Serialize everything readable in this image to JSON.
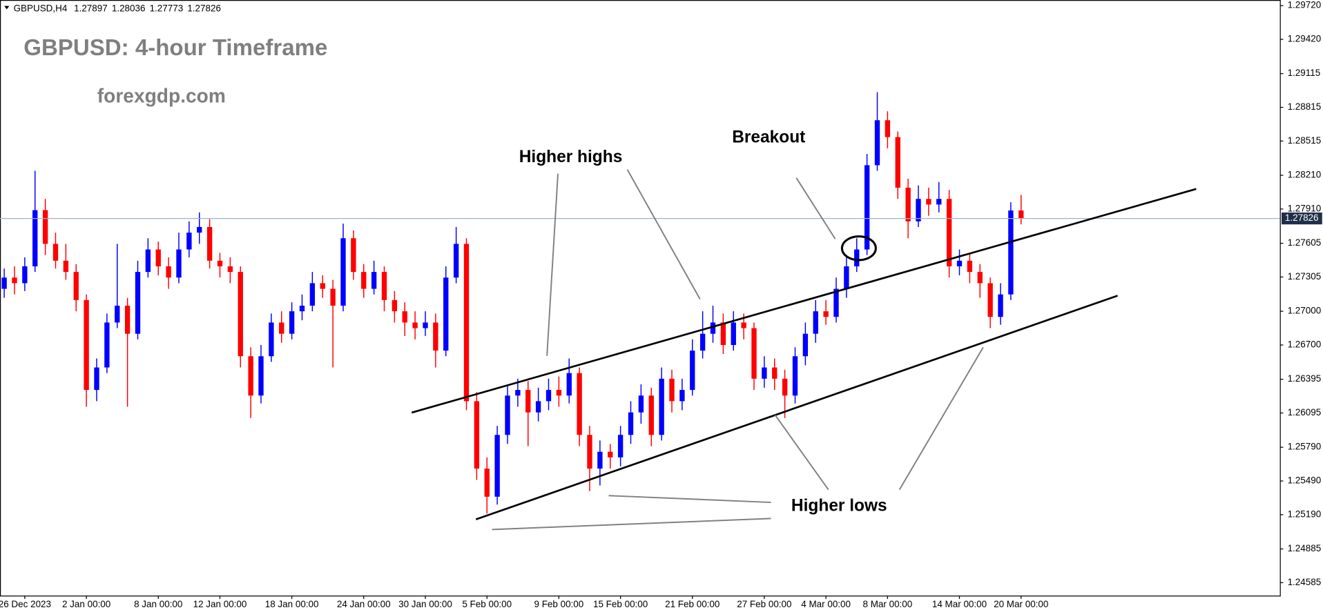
{
  "header": {
    "symbol": "GBPUSD,H4"
  },
  "chart_data": {
    "type": "candlestick",
    "title": "GBPUSD: 4-hour Timeframe",
    "subtitle": "forexgdp.com",
    "categories": [
      null,
      null,
      "26 Dec 2023",
      null,
      null,
      null,
      null,
      null,
      "2 Jan 00:00",
      null,
      null,
      null,
      null,
      null,
      null,
      "8 Jan 00:00",
      null,
      null,
      null,
      null,
      null,
      "12 Jan 00:00",
      null,
      null,
      null,
      null,
      null,
      null,
      "18 Jan 00:00",
      null,
      null,
      null,
      null,
      null,
      null,
      "24 Jan 00:00",
      null,
      null,
      null,
      null,
      null,
      "30 Jan 00:00",
      null,
      null,
      null,
      null,
      null,
      "5 Feb 00:00",
      null,
      null,
      null,
      null,
      null,
      null,
      "9 Feb 00:00",
      null,
      null,
      null,
      null,
      null,
      "15 Feb 00:00",
      null,
      null,
      null,
      null,
      null,
      null,
      "21 Feb 00:00",
      null,
      null,
      null,
      null,
      null,
      null,
      "27 Feb 00:00",
      null,
      null,
      null,
      null,
      null,
      "4 Mar 00:00",
      null,
      null,
      null,
      null,
      null,
      "8 Mar 00:00",
      null,
      null,
      null,
      null,
      null,
      null,
      "14 Mar 00:00",
      null,
      null,
      null,
      null,
      null,
      "20 Mar 00:00"
    ],
    "open": [
      1.272,
      1.273,
      1.2725,
      1.274,
      1.279,
      1.276,
      1.2745,
      1.2735,
      1.271,
      1.263,
      1.265,
      1.269,
      1.2705,
      1.268,
      1.2735,
      1.2755,
      1.274,
      1.273,
      1.2755,
      1.277,
      1.2775,
      1.2745,
      1.274,
      1.2735,
      1.266,
      1.2625,
      1.266,
      1.269,
      1.268,
      1.27,
      1.2705,
      1.2725,
      1.272,
      1.2705,
      1.2765,
      1.2735,
      1.272,
      1.2735,
      1.271,
      1.27,
      1.269,
      1.2685,
      1.269,
      1.2665,
      1.273,
      1.276,
      1.262,
      1.256,
      1.2535,
      1.259,
      1.2625,
      1.263,
      1.261,
      1.262,
      1.263,
      1.2625,
      1.2645,
      1.259,
      1.256,
      1.2575,
      1.257,
      1.259,
      1.261,
      1.2625,
      1.259,
      1.264,
      1.262,
      1.263,
      1.2665,
      1.268,
      1.269,
      1.267,
      1.269,
      1.2685,
      1.264,
      1.265,
      1.264,
      1.2625,
      1.266,
      1.268,
      1.27,
      1.2695,
      1.272,
      1.274,
      1.2755,
      1.283,
      1.287,
      1.2855,
      1.281,
      1.278,
      1.28,
      1.2795,
      1.28,
      1.274,
      1.2745,
      1.2735,
      1.2725,
      1.2695,
      1.2715,
      1.27897
    ],
    "high": [
      1.2738,
      1.274,
      1.2748,
      1.2825,
      1.28,
      1.277,
      1.276,
      1.2742,
      1.2715,
      1.2658,
      1.2698,
      1.276,
      1.2712,
      1.2745,
      1.2765,
      1.2762,
      1.2748,
      1.277,
      1.278,
      1.2788,
      1.2782,
      1.2752,
      1.2748,
      1.274,
      1.2668,
      1.267,
      1.2698,
      1.27,
      1.2708,
      1.2715,
      1.2735,
      1.2732,
      1.2728,
      1.2778,
      1.2772,
      1.2742,
      1.2745,
      1.274,
      1.2718,
      1.2708,
      1.27,
      1.27,
      1.2698,
      1.274,
      1.2775,
      1.2765,
      1.2628,
      1.257,
      1.2598,
      1.2635,
      1.264,
      1.2638,
      1.2632,
      1.264,
      1.2642,
      1.2658,
      1.265,
      1.2598,
      1.2585,
      1.2582,
      1.2598,
      1.262,
      1.2635,
      1.2632,
      1.265,
      1.2648,
      1.264,
      1.2675,
      1.27,
      1.2705,
      1.2698,
      1.27,
      1.2698,
      1.269,
      1.266,
      1.2658,
      1.2648,
      1.2668,
      1.269,
      1.271,
      1.271,
      1.273,
      1.275,
      1.2765,
      1.284,
      1.2895,
      1.2878,
      1.286,
      1.2818,
      1.2812,
      1.281,
      1.2815,
      1.2808,
      1.2755,
      1.2752,
      1.2742,
      1.273,
      1.2725,
      1.2797,
      1.28036
    ],
    "low": [
      1.2712,
      1.2715,
      1.2718,
      1.2735,
      1.275,
      1.2738,
      1.2728,
      1.27,
      1.2615,
      1.262,
      1.2645,
      1.2685,
      1.2615,
      1.2675,
      1.273,
      1.2732,
      1.272,
      1.2725,
      1.2748,
      1.276,
      1.2738,
      1.273,
      1.2725,
      1.265,
      1.2605,
      1.2618,
      1.2655,
      1.2672,
      1.2675,
      1.2692,
      1.27,
      1.2712,
      1.265,
      1.27,
      1.2728,
      1.2712,
      1.2715,
      1.27,
      1.269,
      1.2678,
      1.2675,
      1.2678,
      1.265,
      1.266,
      1.2725,
      1.2612,
      1.255,
      1.252,
      1.2528,
      1.2582,
      1.2615,
      1.258,
      1.2602,
      1.2612,
      1.2615,
      1.2618,
      1.258,
      1.254,
      1.2545,
      1.256,
      1.2562,
      1.2582,
      1.26,
      1.258,
      1.2585,
      1.261,
      1.2612,
      1.2625,
      1.2658,
      1.2672,
      1.2662,
      1.2665,
      1.2675,
      1.263,
      1.2632,
      1.263,
      1.2605,
      1.2618,
      1.2652,
      1.2672,
      1.2688,
      1.269,
      1.2712,
      1.2735,
      1.275,
      1.2825,
      1.2845,
      1.28,
      1.2765,
      1.2775,
      1.2785,
      1.2788,
      1.273,
      1.2732,
      1.2725,
      1.2712,
      1.2685,
      1.2688,
      1.271,
      1.27773
    ],
    "close": [
      1.273,
      1.2725,
      1.274,
      1.279,
      1.276,
      1.2745,
      1.2735,
      1.271,
      1.263,
      1.265,
      1.269,
      1.2705,
      1.268,
      1.2735,
      1.2755,
      1.274,
      1.273,
      1.2755,
      1.277,
      1.2775,
      1.2745,
      1.274,
      1.2735,
      1.266,
      1.2625,
      1.266,
      1.269,
      1.268,
      1.27,
      1.2705,
      1.2725,
      1.272,
      1.2705,
      1.2765,
      1.2735,
      1.272,
      1.2735,
      1.271,
      1.27,
      1.269,
      1.2685,
      1.269,
      1.2665,
      1.273,
      1.276,
      1.262,
      1.256,
      1.2535,
      1.259,
      1.2625,
      1.263,
      1.261,
      1.262,
      1.263,
      1.2625,
      1.2645,
      1.259,
      1.256,
      1.2575,
      1.257,
      1.259,
      1.261,
      1.2625,
      1.259,
      1.264,
      1.262,
      1.263,
      1.2665,
      1.268,
      1.269,
      1.267,
      1.269,
      1.2685,
      1.264,
      1.265,
      1.264,
      1.2625,
      1.266,
      1.268,
      1.27,
      1.2695,
      1.272,
      1.274,
      1.2755,
      1.283,
      1.287,
      1.2855,
      1.281,
      1.278,
      1.28,
      1.2795,
      1.28,
      1.274,
      1.2745,
      1.2735,
      1.2725,
      1.2695,
      1.2715,
      1.27897,
      1.27826
    ],
    "up_color": "#0000ff",
    "down_color": "#ff0000",
    "ylim": [
      1.2447,
      1.2977
    ],
    "yticks": [
      {
        "value": 1.2972,
        "label": "1.29720"
      },
      {
        "value": 1.2942,
        "label": "1.29420"
      },
      1.29115,
      1.28815,
      1.28515,
      {
        "value": 1.2821,
        "label": "1.28210"
      },
      {
        "value": 1.2791,
        "label": "1.27910"
      },
      1.27605,
      1.27305,
      {
        "value": 1.27,
        "label": "1.27000"
      },
      {
        "value": 1.267,
        "label": "1.26700"
      },
      1.26395,
      1.26095,
      {
        "value": 1.2579,
        "label": "1.25790"
      },
      {
        "value": 1.2549,
        "label": "1.25490"
      },
      {
        "value": 1.2519,
        "label": "1.25190"
      },
      1.24885,
      1.24585
    ],
    "grid": false,
    "current_price_line": true,
    "annotations": [
      "Higher highs",
      "Breakout",
      "Higher lows"
    ]
  }
}
